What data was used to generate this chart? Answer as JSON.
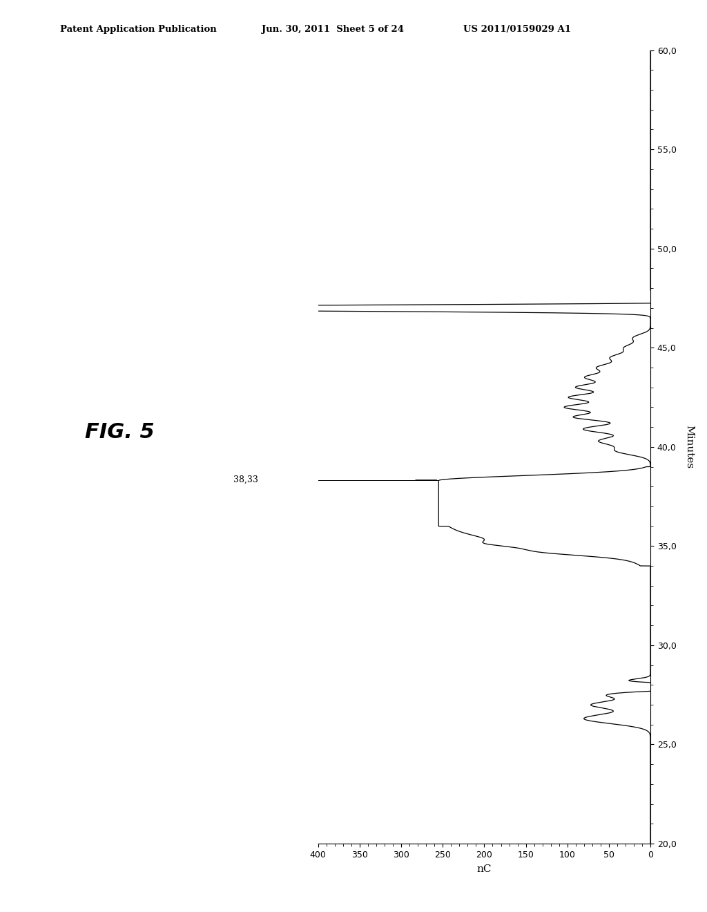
{
  "fig_label": "FIG. 5",
  "annotation_text": "38,33",
  "header_left": "Patent Application Publication",
  "header_mid": "Jun. 30, 2011  Sheet 5 of 24",
  "header_right": "US 2011/0159029 A1",
  "x_label": "Minutes",
  "y_label": "nC",
  "t_min": 20.0,
  "t_max": 60.0,
  "t_ticks": [
    20.0,
    25.0,
    30.0,
    35.0,
    40.0,
    45.0,
    50.0,
    55.0,
    60.0
  ],
  "nc_min": 0,
  "nc_max": 400,
  "nc_ticks": [
    0,
    50,
    100,
    150,
    200,
    250,
    300,
    350,
    400
  ],
  "background_color": "#ffffff",
  "line_color": "#000000"
}
